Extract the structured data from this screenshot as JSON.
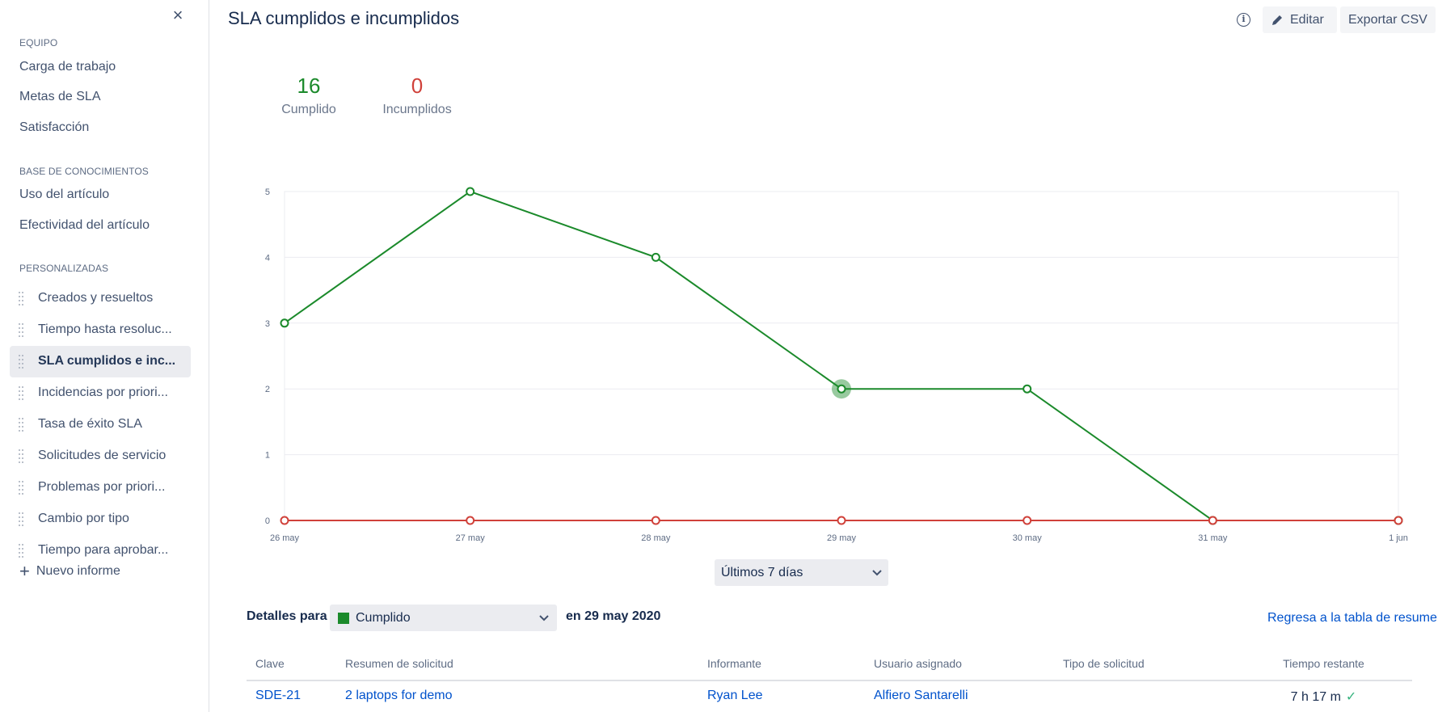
{
  "sidebar": {
    "close_icon": "×",
    "team": {
      "heading": "EQUIPO",
      "items": [
        "Carga de trabajo",
        "Metas de SLA",
        "Satisfacción"
      ]
    },
    "knowledge": {
      "heading": "BASE DE CONOCIMIENTOS",
      "items": [
        "Uso del artículo",
        "Efectividad del artículo"
      ]
    },
    "custom": {
      "heading": "PERSONALIZADAS",
      "items": [
        "Creados y resueltos",
        "Tiempo hasta resoluc...",
        "SLA cumplidos e inc...",
        "Incidencias por priori...",
        "Tasa de éxito SLA",
        "Solicitudes de servicio",
        "Problemas por priori...",
        "Cambio por tipo",
        "Tiempo para aprobar..."
      ],
      "active_index": 2
    },
    "new_report": "Nuevo informe"
  },
  "header": {
    "title": "SLA cumplidos e incumplidos",
    "info_icon": "i",
    "edit_label": "Editar",
    "export_label": "Exportar CSV"
  },
  "stats": {
    "met": {
      "value": "16",
      "label": "Cumplido",
      "color": "#1b8a2b"
    },
    "breached": {
      "value": "0",
      "label": "Incumplidos",
      "color": "#d0413a"
    }
  },
  "chart_data": {
    "type": "line",
    "categories": [
      "26 may",
      "27 may",
      "28 may",
      "29 may",
      "30 may",
      "31 may",
      "1 jun"
    ],
    "yticks": [
      "0",
      "1",
      "2",
      "3",
      "4",
      "5"
    ],
    "ylim": [
      0,
      5
    ],
    "grid": true,
    "series": [
      {
        "values": [
          3,
          5,
          4,
          2,
          2,
          0,
          0
        ],
        "color": "#1b8a2b"
      },
      {
        "values": [
          0,
          0,
          0,
          0,
          0,
          0,
          0
        ],
        "color": "#d0413a"
      }
    ],
    "highlighted_index": 3
  },
  "range_select": {
    "value": "Últimos 7 días"
  },
  "details": {
    "label": "Detalles para",
    "status_value": "Cumplido",
    "date_text": "en 29 may 2020",
    "back_link": "Regresa a la tabla de resumen"
  },
  "table": {
    "headers": [
      "Clave",
      "Resumen de solicitud",
      "Informante",
      "Usuario asignado",
      "Tipo de solicitud",
      "Tiempo restante"
    ],
    "rows": [
      {
        "key": "SDE-21",
        "summary": "2 laptops for demo",
        "reporter": "Ryan Lee",
        "assignee": "Alfiero Santarelli",
        "type": "",
        "remaining": "7 h 17 m",
        "status_icon": "✓"
      }
    ]
  }
}
